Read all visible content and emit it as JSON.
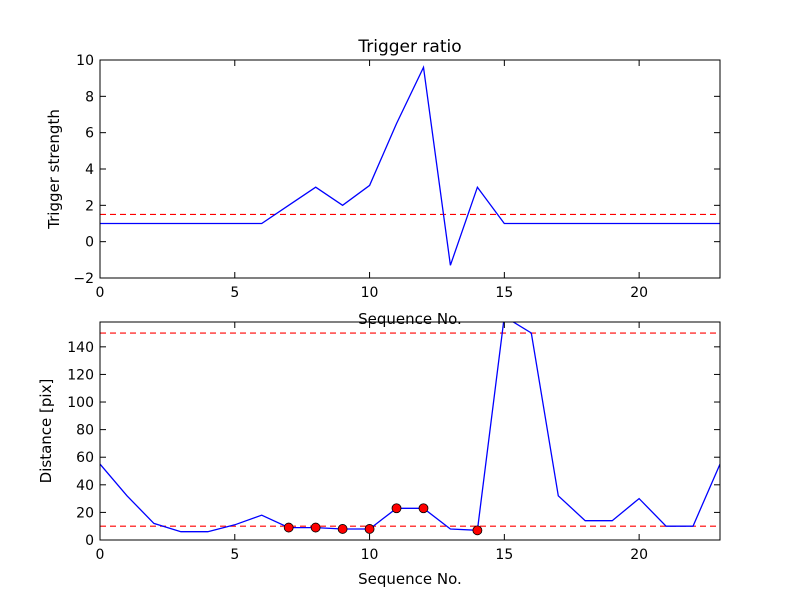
{
  "chart_data": [
    {
      "type": "line",
      "title": "Trigger ratio",
      "xlabel": "Sequence No.",
      "ylabel": "Trigger strength",
      "xlim": [
        0,
        23
      ],
      "ylim": [
        -2,
        10
      ],
      "xticks": [
        0,
        5,
        10,
        15,
        20
      ],
      "yticks": [
        -2,
        0,
        2,
        4,
        6,
        8,
        10
      ],
      "grid": false,
      "series": [
        {
          "color": "#0000ff",
          "style": "solid",
          "x": [
            0,
            1,
            2,
            3,
            4,
            5,
            6,
            7,
            8,
            9,
            10,
            11,
            12,
            13,
            14,
            15,
            16,
            17,
            18,
            19,
            20,
            21,
            22,
            23
          ],
          "y": [
            1,
            1,
            1,
            1,
            1,
            1,
            1,
            2,
            3,
            2,
            3.1,
            6.5,
            9.6,
            -1.3,
            3,
            1,
            1,
            1,
            1,
            1,
            1,
            1,
            1,
            1
          ]
        }
      ],
      "hlines": [
        {
          "y": 1.5,
          "color": "#ff0000",
          "style": "dashed"
        }
      ]
    },
    {
      "type": "line",
      "title": "",
      "xlabel": "Sequence No.",
      "ylabel": "Distance [pix]",
      "xlim": [
        0,
        23
      ],
      "ylim": [
        0,
        158
      ],
      "xticks": [
        0,
        5,
        10,
        15,
        20
      ],
      "yticks": [
        0,
        20,
        40,
        60,
        80,
        100,
        120,
        140
      ],
      "grid": false,
      "series": [
        {
          "color": "#0000ff",
          "style": "solid",
          "x": [
            0,
            1,
            2,
            3,
            4,
            5,
            6,
            7,
            8,
            9,
            10,
            11,
            12,
            13,
            14,
            15,
            16,
            17,
            18,
            19,
            20,
            21,
            22,
            23
          ],
          "y": [
            55,
            32,
            12,
            6,
            6,
            11,
            18,
            9,
            9,
            8,
            8,
            23,
            23,
            8,
            7,
            162,
            150,
            32,
            14,
            14,
            30,
            10,
            10,
            55
          ]
        }
      ],
      "markers": {
        "color": "#ff0000",
        "x": [
          7,
          8,
          9,
          10,
          11,
          12,
          14
        ],
        "y": [
          9,
          9,
          8,
          8,
          23,
          23,
          7
        ]
      },
      "hlines": [
        {
          "y": 150,
          "color": "#ff0000",
          "style": "dashed"
        },
        {
          "y": 10,
          "color": "#ff0000",
          "style": "dashed"
        }
      ]
    }
  ]
}
